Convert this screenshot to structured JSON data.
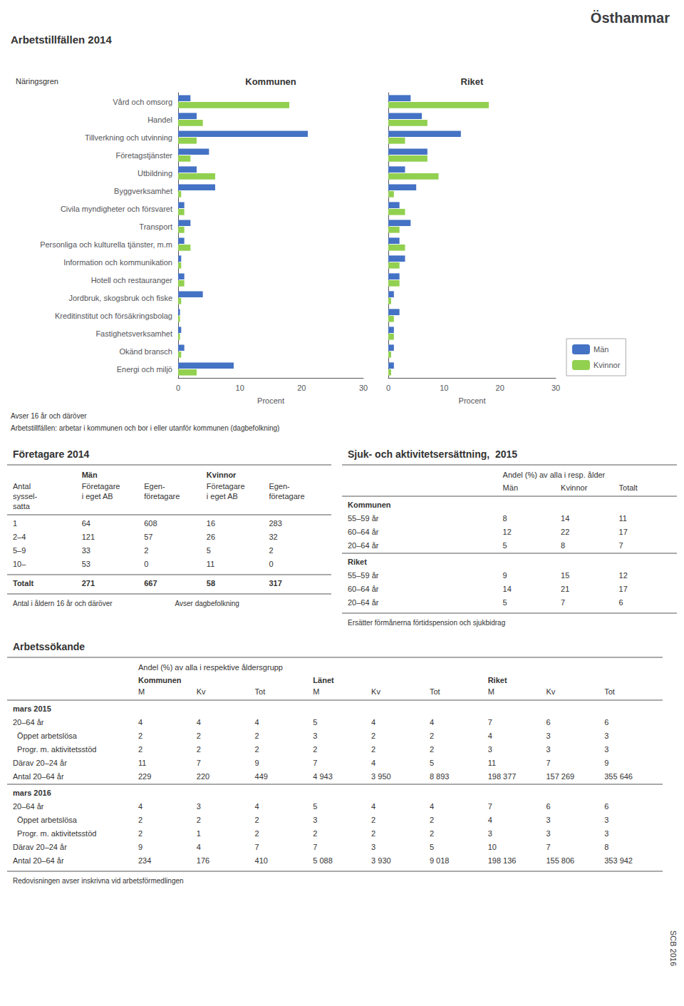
{
  "title": "Östhammar",
  "annotations": [
    "SCB 2016"
  ],
  "chart_data": [
    {
      "type": "bar",
      "orientation": "horizontal",
      "title": "Kommunen",
      "ylabel": "Näringsgren",
      "xlabel": "Procent",
      "annotations": [
        "Arbetstillfällen 2014",
        "Avser 16 år och däröver",
        "Arbetstillfällen: arbetar i kommunen och bor i eller utanför kommunen (dagbefolkning)"
      ],
      "categories": [
        "Vård och omsorg",
        "Handel",
        "Tillverkning och utvinning",
        "Företagstjänster",
        "Utbildning",
        "Byggverksamhet",
        "Civila myndigheter och försvaret",
        "Transport",
        "Personliga och kulturella tjänster, m.m",
        "Information och kommunikation",
        "Hotell och restauranger",
        "Jordbruk, skogsbruk och fiske",
        "Kreditinstitut och försäkringsbolag",
        "Fastighetsverksamhet",
        "Okänd bransch",
        "Energi och miljö"
      ],
      "series": [
        {
          "name": "Män",
          "color": "#4472c4",
          "values": [
            2,
            3,
            21,
            5,
            3,
            6,
            1,
            2,
            1,
            0.5,
            1,
            4,
            0.3,
            0.5,
            1,
            9
          ]
        },
        {
          "name": "Kvinnor",
          "color": "#92d050",
          "values": [
            18,
            4,
            3,
            2,
            6,
            0.5,
            1,
            1,
            2,
            0.5,
            1,
            0.5,
            0.3,
            0.3,
            0.5,
            3
          ]
        }
      ],
      "xlim": [
        0,
        30
      ],
      "xticks": [
        0,
        10,
        20,
        30
      ],
      "grid": false
    },
    {
      "type": "bar",
      "orientation": "horizontal",
      "title": "Riket",
      "xlabel": "Procent",
      "categories": [
        "Vård och omsorg",
        "Handel",
        "Tillverkning och utvinning",
        "Företagstjänster",
        "Utbildning",
        "Byggverksamhet",
        "Civila myndigheter och försvaret",
        "Transport",
        "Personliga och kulturella tjänster, m.m",
        "Information och kommunikation",
        "Hotell och restauranger",
        "Jordbruk, skogsbruk och fiske",
        "Kreditinstitut och försäkringsbolag",
        "Fastighetsverksamhet",
        "Okänd bransch",
        "Energi och miljö"
      ],
      "series": [
        {
          "name": "Män",
          "color": "#4472c4",
          "values": [
            4,
            6,
            13,
            7,
            3,
            5,
            2,
            4,
            2,
            3,
            2,
            1,
            2,
            1,
            1,
            1
          ]
        },
        {
          "name": "Kvinnor",
          "color": "#92d050",
          "values": [
            18,
            7,
            3,
            7,
            9,
            1,
            3,
            2,
            3,
            2,
            2,
            0.5,
            1,
            1,
            0.5,
            0.5
          ]
        }
      ],
      "xlim": [
        0,
        30
      ],
      "xticks": [
        0,
        10,
        20,
        30
      ],
      "grid": false,
      "tick_labels": "x",
      "legend": "lower right"
    },
    {
      "type": "table",
      "title": "Företagare 2014",
      "row_header": [
        "Antal",
        "syssel-",
        "satta"
      ],
      "column_groups": [
        {
          "label": "Män",
          "columns": [
            [
              "Företagare",
              "i eget AB"
            ],
            [
              "Egen-",
              "företagare"
            ]
          ]
        },
        {
          "label": "Kvinnor",
          "columns": [
            [
              "Företagare",
              "i eget AB"
            ],
            [
              "Egen-",
              "företagare"
            ]
          ]
        }
      ],
      "rows": [
        [
          "1",
          "64",
          "608",
          "16",
          "283"
        ],
        [
          "2–4",
          "121",
          "57",
          "26",
          "32"
        ],
        [
          "5–9",
          "33",
          "2",
          "5",
          "2"
        ],
        [
          "10–",
          "53",
          "0",
          "11",
          "0"
        ],
        [
          "Totalt",
          "271",
          "667",
          "58",
          "317"
        ]
      ],
      "annotations": [
        "Antal i åldern 16 år och däröver",
        "Avser dagbefolkning"
      ]
    },
    {
      "type": "table",
      "title": "Sjuk- och aktivitetsersättning,  2015",
      "subtitle": "Andel (%) av alla i resp. ålder",
      "columns": [
        "Män",
        "Kvinnor",
        "Totalt"
      ],
      "row_groups": [
        {
          "label": "Kommunen",
          "rows": [
            [
              "55–59 år",
              "8",
              "14",
              "11"
            ],
            [
              "60–64 år",
              "12",
              "22",
              "17"
            ],
            [
              "20–64 år",
              "5",
              "8",
              "7"
            ]
          ]
        },
        {
          "label": "Riket",
          "rows": [
            [
              "55–59 år",
              "9",
              "15",
              "12"
            ],
            [
              "60–64 år",
              "14",
              "21",
              "17"
            ],
            [
              "20–64 år",
              "5",
              "7",
              "6"
            ]
          ]
        }
      ],
      "annotations": [
        "Ersätter förmånerna förtidspension och sjukbidrag"
      ]
    },
    {
      "type": "table",
      "title": "Arbetssökande",
      "subtitle": "Andel (%) av alla i respektive åldersgrupp",
      "column_groups": [
        {
          "label": "Kommunen",
          "columns": [
            "M",
            "Kv",
            "Tot"
          ]
        },
        {
          "label": "Länet",
          "columns": [
            "M",
            "Kv",
            "Tot"
          ]
        },
        {
          "label": "Riket",
          "columns": [
            "M",
            "Kv",
            "Tot"
          ]
        }
      ],
      "row_groups": [
        {
          "label": "mars 2015",
          "rows": [
            [
              "20–64 år",
              "4",
              "4",
              "4",
              "5",
              "4",
              "4",
              "7",
              "6",
              "6"
            ],
            [
              "  Öppet arbetslösa",
              "2",
              "2",
              "2",
              "3",
              "2",
              "2",
              "4",
              "3",
              "3"
            ],
            [
              "  Progr. m. aktivitetsstöd",
              "2",
              "2",
              "2",
              "2",
              "2",
              "2",
              "3",
              "3",
              "3"
            ],
            [
              "Därav 20–24 år",
              "11",
              "7",
              "9",
              "7",
              "4",
              "5",
              "11",
              "7",
              "9"
            ],
            [
              "Antal 20–64 år",
              "229",
              "220",
              "449",
              "4 943",
              "3 950",
              "8 893",
              "198 377",
              "157 269",
              "355 646"
            ]
          ]
        },
        {
          "label": "mars 2016",
          "rows": [
            [
              "20–64 år",
              "4",
              "3",
              "4",
              "5",
              "4",
              "4",
              "7",
              "6",
              "6"
            ],
            [
              "  Öppet arbetslösa",
              "2",
              "2",
              "2",
              "3",
              "2",
              "2",
              "4",
              "3",
              "3"
            ],
            [
              "  Progr. m. aktivitetsstöd",
              "2",
              "1",
              "2",
              "2",
              "2",
              "2",
              "3",
              "3",
              "3"
            ],
            [
              "Därav 20–24 år",
              "9",
              "4",
              "7",
              "7",
              "3",
              "5",
              "10",
              "7",
              "8"
            ],
            [
              "Antal 20–64 år",
              "234",
              "176",
              "410",
              "5 088",
              "3 930",
              "9 018",
              "198 136",
              "155 806",
              "353 942"
            ]
          ]
        }
      ],
      "annotations": [
        "Redovisningen avser inskrivna vid arbetsförmedlingen"
      ]
    }
  ]
}
